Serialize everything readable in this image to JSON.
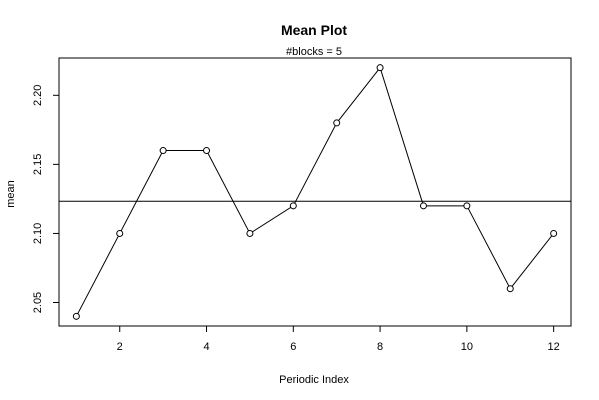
{
  "chart_data": {
    "type": "line",
    "title": "Mean Plot",
    "subtitle": "#blocks =  5",
    "xlabel": "Periodic Index",
    "ylabel": "mean",
    "x": [
      1,
      2,
      3,
      4,
      5,
      6,
      7,
      8,
      9,
      10,
      11,
      12
    ],
    "values": [
      2.04,
      2.1,
      2.16,
      2.16,
      2.1,
      2.12,
      2.18,
      2.22,
      2.12,
      2.12,
      2.06,
      2.1
    ],
    "overall_mean": 2.1233,
    "xlim": [
      0.6,
      12.4
    ],
    "ylim": [
      2.033,
      2.227
    ],
    "x_ticks": [
      2,
      4,
      6,
      8,
      10,
      12
    ],
    "y_ticks": [
      2.05,
      2.1,
      2.15,
      2.2
    ],
    "x_tick_labels": [
      "2",
      "4",
      "6",
      "8",
      "10",
      "12"
    ],
    "y_tick_labels": [
      "2.05",
      "2.10",
      "2.15",
      "2.20"
    ],
    "grid": false,
    "marker": "open-circle"
  }
}
